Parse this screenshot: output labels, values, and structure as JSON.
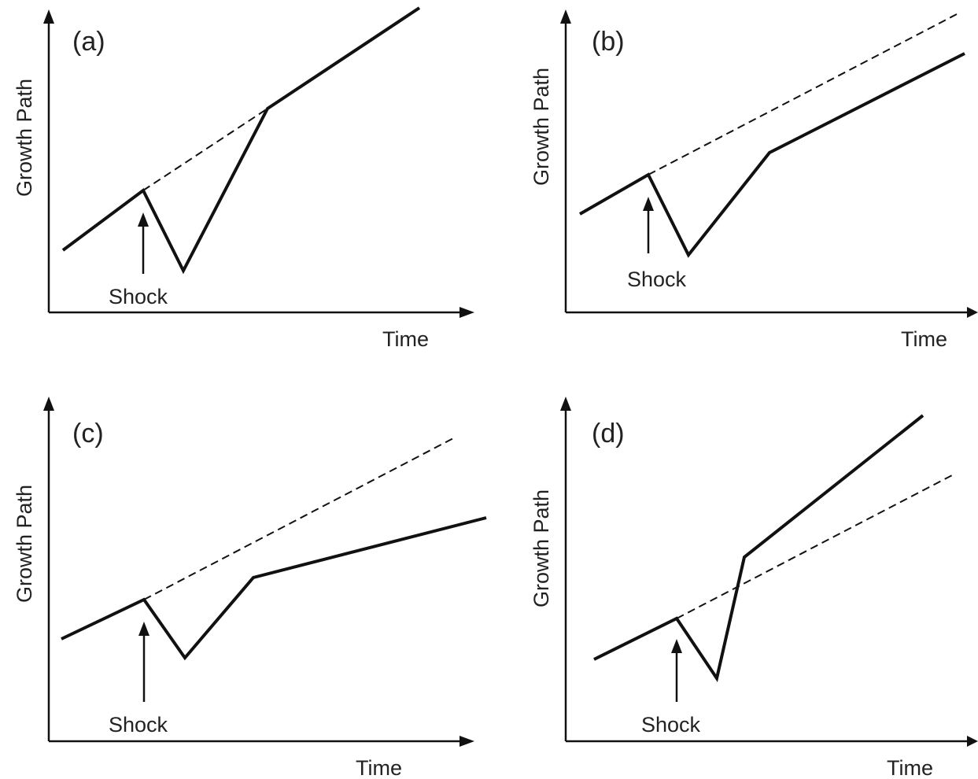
{
  "panels": [
    {
      "label": "(a)",
      "ylabel": "Growth Path",
      "xlabel": "Time",
      "shock": "Shock"
    },
    {
      "label": "(b)",
      "ylabel": "Growth Path",
      "xlabel": "Time",
      "shock": "Shock"
    },
    {
      "label": "(c)",
      "ylabel": "Growth Path",
      "xlabel": "Time",
      "shock": "Shock"
    },
    {
      "label": "(d)",
      "ylabel": "Growth Path",
      "xlabel": "Time",
      "shock": "Shock"
    }
  ]
}
